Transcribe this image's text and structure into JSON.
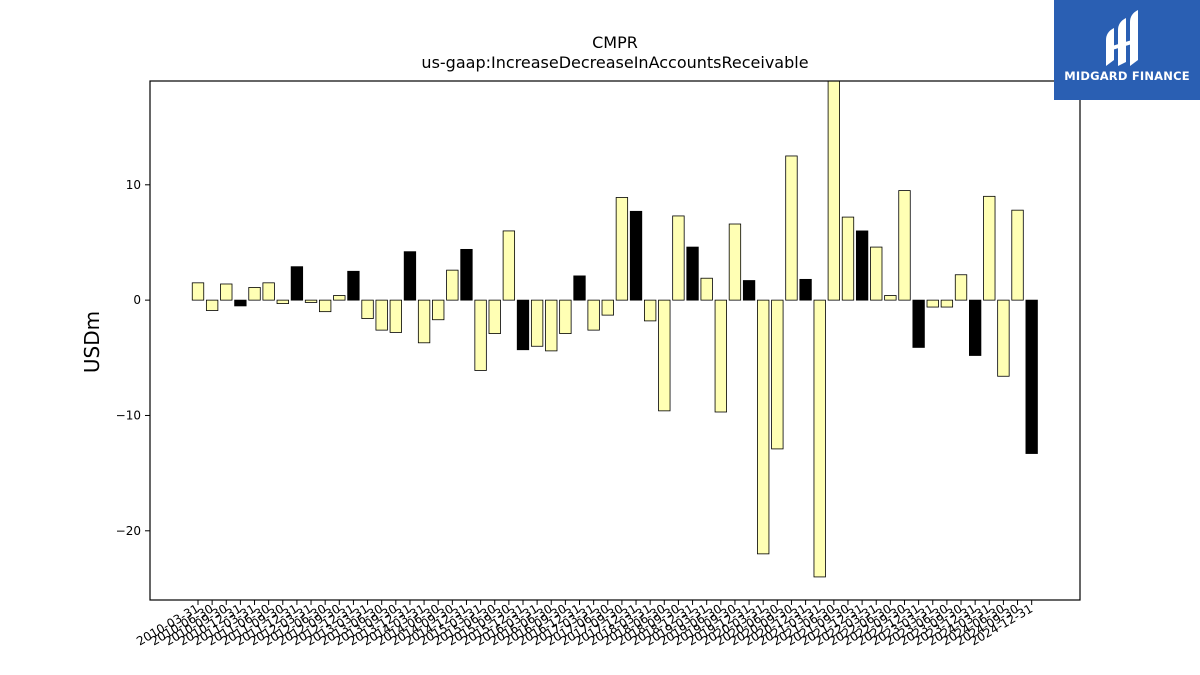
{
  "logo": {
    "text": "MIDGARD FINANCE",
    "bg_color": "#2a5fb3"
  },
  "chart_data": {
    "type": "bar",
    "title": "CMPR",
    "subtitle": "us-gaap:IncreaseDecreaseInAccountsReceivable",
    "ylabel": "USDm",
    "xlabel": "",
    "ylim": [
      -26,
      19
    ],
    "yticks": [
      -20,
      -10,
      0,
      10
    ],
    "grid": false,
    "colors": {
      "quarter": "#ffffb4",
      "year_end": "#000000",
      "edge": "#000000"
    },
    "categories": [
      "2010-03-31",
      "2010-06-30",
      "2010-09-30",
      "2010-12-31",
      "2011-03-31",
      "2011-06-30",
      "2011-09-30",
      "2011-12-31",
      "2012-03-31",
      "2012-06-30",
      "2012-09-30",
      "2012-12-31",
      "2013-03-31",
      "2013-06-30",
      "2013-09-30",
      "2013-12-31",
      "2014-03-31",
      "2014-06-30",
      "2014-09-30",
      "2014-12-31",
      "2015-03-31",
      "2015-06-30",
      "2015-09-30",
      "2015-12-31",
      "2016-03-31",
      "2016-06-30",
      "2016-09-30",
      "2016-12-31",
      "2017-03-31",
      "2017-06-30",
      "2017-09-30",
      "2017-12-31",
      "2018-03-31",
      "2018-06-30",
      "2018-09-30",
      "2018-12-31",
      "2019-03-31",
      "2019-06-30",
      "2019-09-30",
      "2019-12-31",
      "2020-03-31",
      "2020-06-30",
      "2020-09-30",
      "2020-12-31",
      "2021-03-31",
      "2021-06-30",
      "2021-09-30",
      "2021-12-31",
      "2022-03-31",
      "2022-06-30",
      "2022-09-30",
      "2022-12-31",
      "2023-03-31",
      "2023-06-30",
      "2023-09-30",
      "2023-12-31",
      "2024-03-31",
      "2024-06-30",
      "2024-09-30",
      "2024-12-31"
    ],
    "values": [
      1.5,
      -0.9,
      1.4,
      -0.5,
      1.1,
      1.5,
      -0.3,
      2.9,
      -0.2,
      -1.0,
      0.4,
      2.5,
      -1.6,
      -2.6,
      -2.8,
      4.2,
      -3.7,
      -1.7,
      2.6,
      4.4,
      -6.1,
      -2.9,
      6.0,
      -4.3,
      -4.0,
      -4.4,
      -2.9,
      2.1,
      -2.6,
      -1.3,
      8.9,
      7.7,
      -1.8,
      -9.6,
      7.3,
      4.6,
      1.9,
      -9.7,
      6.6,
      1.7,
      -22.0,
      -12.9,
      12.5,
      1.8,
      -24.0,
      19.5,
      7.2,
      6.0,
      4.6,
      0.4,
      9.5,
      -4.1,
      -0.6,
      -0.6,
      2.2,
      -4.8,
      9.0,
      -6.6,
      7.8,
      -13.3
    ]
  }
}
